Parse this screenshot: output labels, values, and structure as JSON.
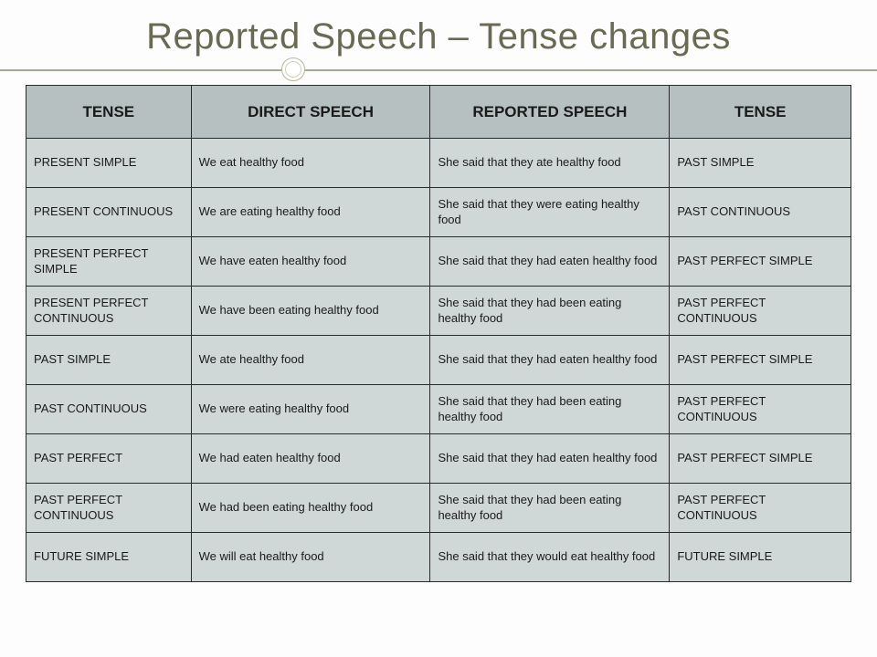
{
  "title": "Reported Speech – Tense changes",
  "colors": {
    "title_color": "#6a6a52",
    "rule_color": "#a8a88c",
    "header_bg": "#b6c0c0",
    "cell_bg": "#d0d7d7",
    "border": "#2a2a2a",
    "text": "#1a1a1a",
    "page_bg": "#fdfdfd"
  },
  "table": {
    "columns": [
      "TENSE",
      "DIRECT SPEECH",
      "REPORTED SPEECH",
      "TENSE"
    ],
    "rows": [
      [
        "PRESENT SIMPLE",
        "We eat healthy food",
        "She said that they ate healthy food",
        "PAST SIMPLE"
      ],
      [
        "PRESENT CONTINUOUS",
        "We are eating healthy food",
        "She said that they were eating healthy food",
        "PAST CONTINUOUS"
      ],
      [
        "PRESENT PERFECT SIMPLE",
        "We have eaten healthy food",
        "She said that they had eaten healthy food",
        "PAST PERFECT SIMPLE"
      ],
      [
        "PRESENT PERFECT CONTINUOUS",
        "We have been eating healthy food",
        "She said that they had been eating  healthy food",
        "PAST PERFECT CONTINUOUS"
      ],
      [
        "PAST SIMPLE",
        "We ate healthy food",
        "She said that they had eaten healthy food",
        "PAST PERFECT SIMPLE"
      ],
      [
        "PAST CONTINUOUS",
        "We were eating healthy food",
        "She said that they had been eating healthy food",
        "PAST PERFECT CONTINUOUS"
      ],
      [
        "PAST PERFECT",
        "We had eaten healthy food",
        "She said that they had eaten healthy food",
        "PAST PERFECT SIMPLE"
      ],
      [
        "PAST PERFECT CONTINUOUS",
        "We had been eating healthy food",
        "She said that they had been eating  healthy food",
        "PAST PERFECT CONTINUOUS"
      ],
      [
        "FUTURE SIMPLE",
        "We will eat healthy food",
        "She said that they would eat healthy food",
        "FUTURE SIMPLE"
      ]
    ]
  }
}
